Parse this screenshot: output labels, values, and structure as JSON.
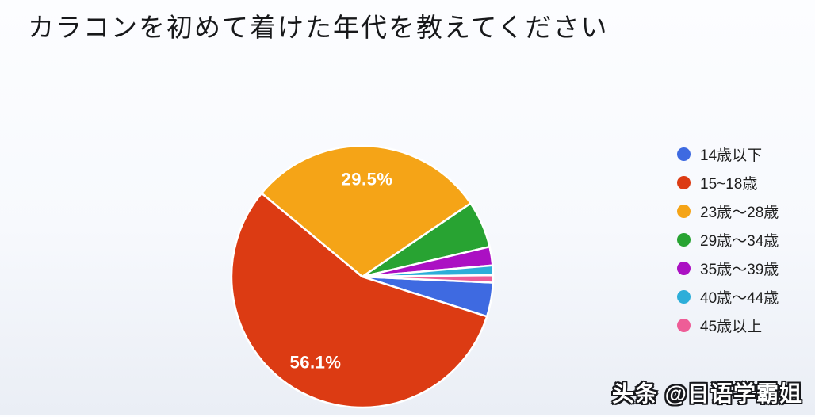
{
  "page": {
    "title": "カラコンを初めて着けた年代を教えてください",
    "watermark": "头条 @日语学霸姐"
  },
  "chart_data": {
    "type": "pie",
    "title": "カラコンを初めて着けた年代を教えてください",
    "legend_position": "right",
    "start_angle_deg_clockwise_from_top": 92.6,
    "on_chart_label_color": "#ffffff",
    "slices": [
      {
        "label": "14歳以下",
        "value": 4.2,
        "color": "#3E6AE1",
        "on_chart_label": "",
        "labeled_on_chart": false,
        "estimated": true
      },
      {
        "label": "15~18歳",
        "value": 56.1,
        "color": "#DC3B13",
        "on_chart_label": "56.1%",
        "labeled_on_chart": true,
        "estimated": false
      },
      {
        "label": "23歳〜28歳",
        "value": 29.5,
        "color": "#F5A417",
        "on_chart_label": "29.5%",
        "labeled_on_chart": true,
        "estimated": false
      },
      {
        "label": "29歳〜34歳",
        "value": 5.8,
        "color": "#28A332",
        "on_chart_label": "",
        "labeled_on_chart": false,
        "estimated": true
      },
      {
        "label": "35歳〜39歳",
        "value": 2.3,
        "color": "#AB10C3",
        "on_chart_label": "",
        "labeled_on_chart": false,
        "estimated": true
      },
      {
        "label": "40歳〜44歳",
        "value": 1.2,
        "color": "#2DAED9",
        "on_chart_label": "",
        "labeled_on_chart": false,
        "estimated": true
      },
      {
        "label": "45歳以上",
        "value": 0.9,
        "color": "#EE5D97",
        "on_chart_label": "",
        "labeled_on_chart": false,
        "estimated": true
      }
    ]
  }
}
